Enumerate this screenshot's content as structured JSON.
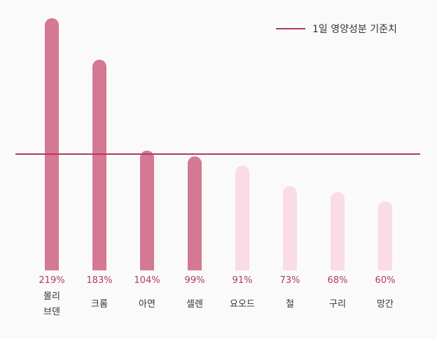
{
  "chart_data": {
    "type": "bar",
    "categories": [
      [
        "몰리",
        "브덴"
      ],
      [
        "크롬"
      ],
      [
        "아연"
      ],
      [
        "셀렌"
      ],
      [
        "요오드"
      ],
      [
        "철"
      ],
      [
        "구리"
      ],
      [
        "망간"
      ]
    ],
    "values": [
      219,
      183,
      104,
      99,
      91,
      73,
      68,
      60
    ],
    "value_labels": [
      "219%",
      "183%",
      "104%",
      "99%",
      "91%",
      "73%",
      "68%",
      "60%"
    ],
    "unit": "%",
    "reference_line": {
      "value": 100,
      "label": "1일 영양성분 기준치"
    },
    "ylim": [
      0,
      219
    ],
    "legend": "top-right",
    "grid": false,
    "colors": {
      "above": "#d47893",
      "below": "#fadbe7",
      "line": "#b23a63",
      "label": "#b23a63",
      "text": "#333333",
      "background": "#fafafa"
    }
  }
}
